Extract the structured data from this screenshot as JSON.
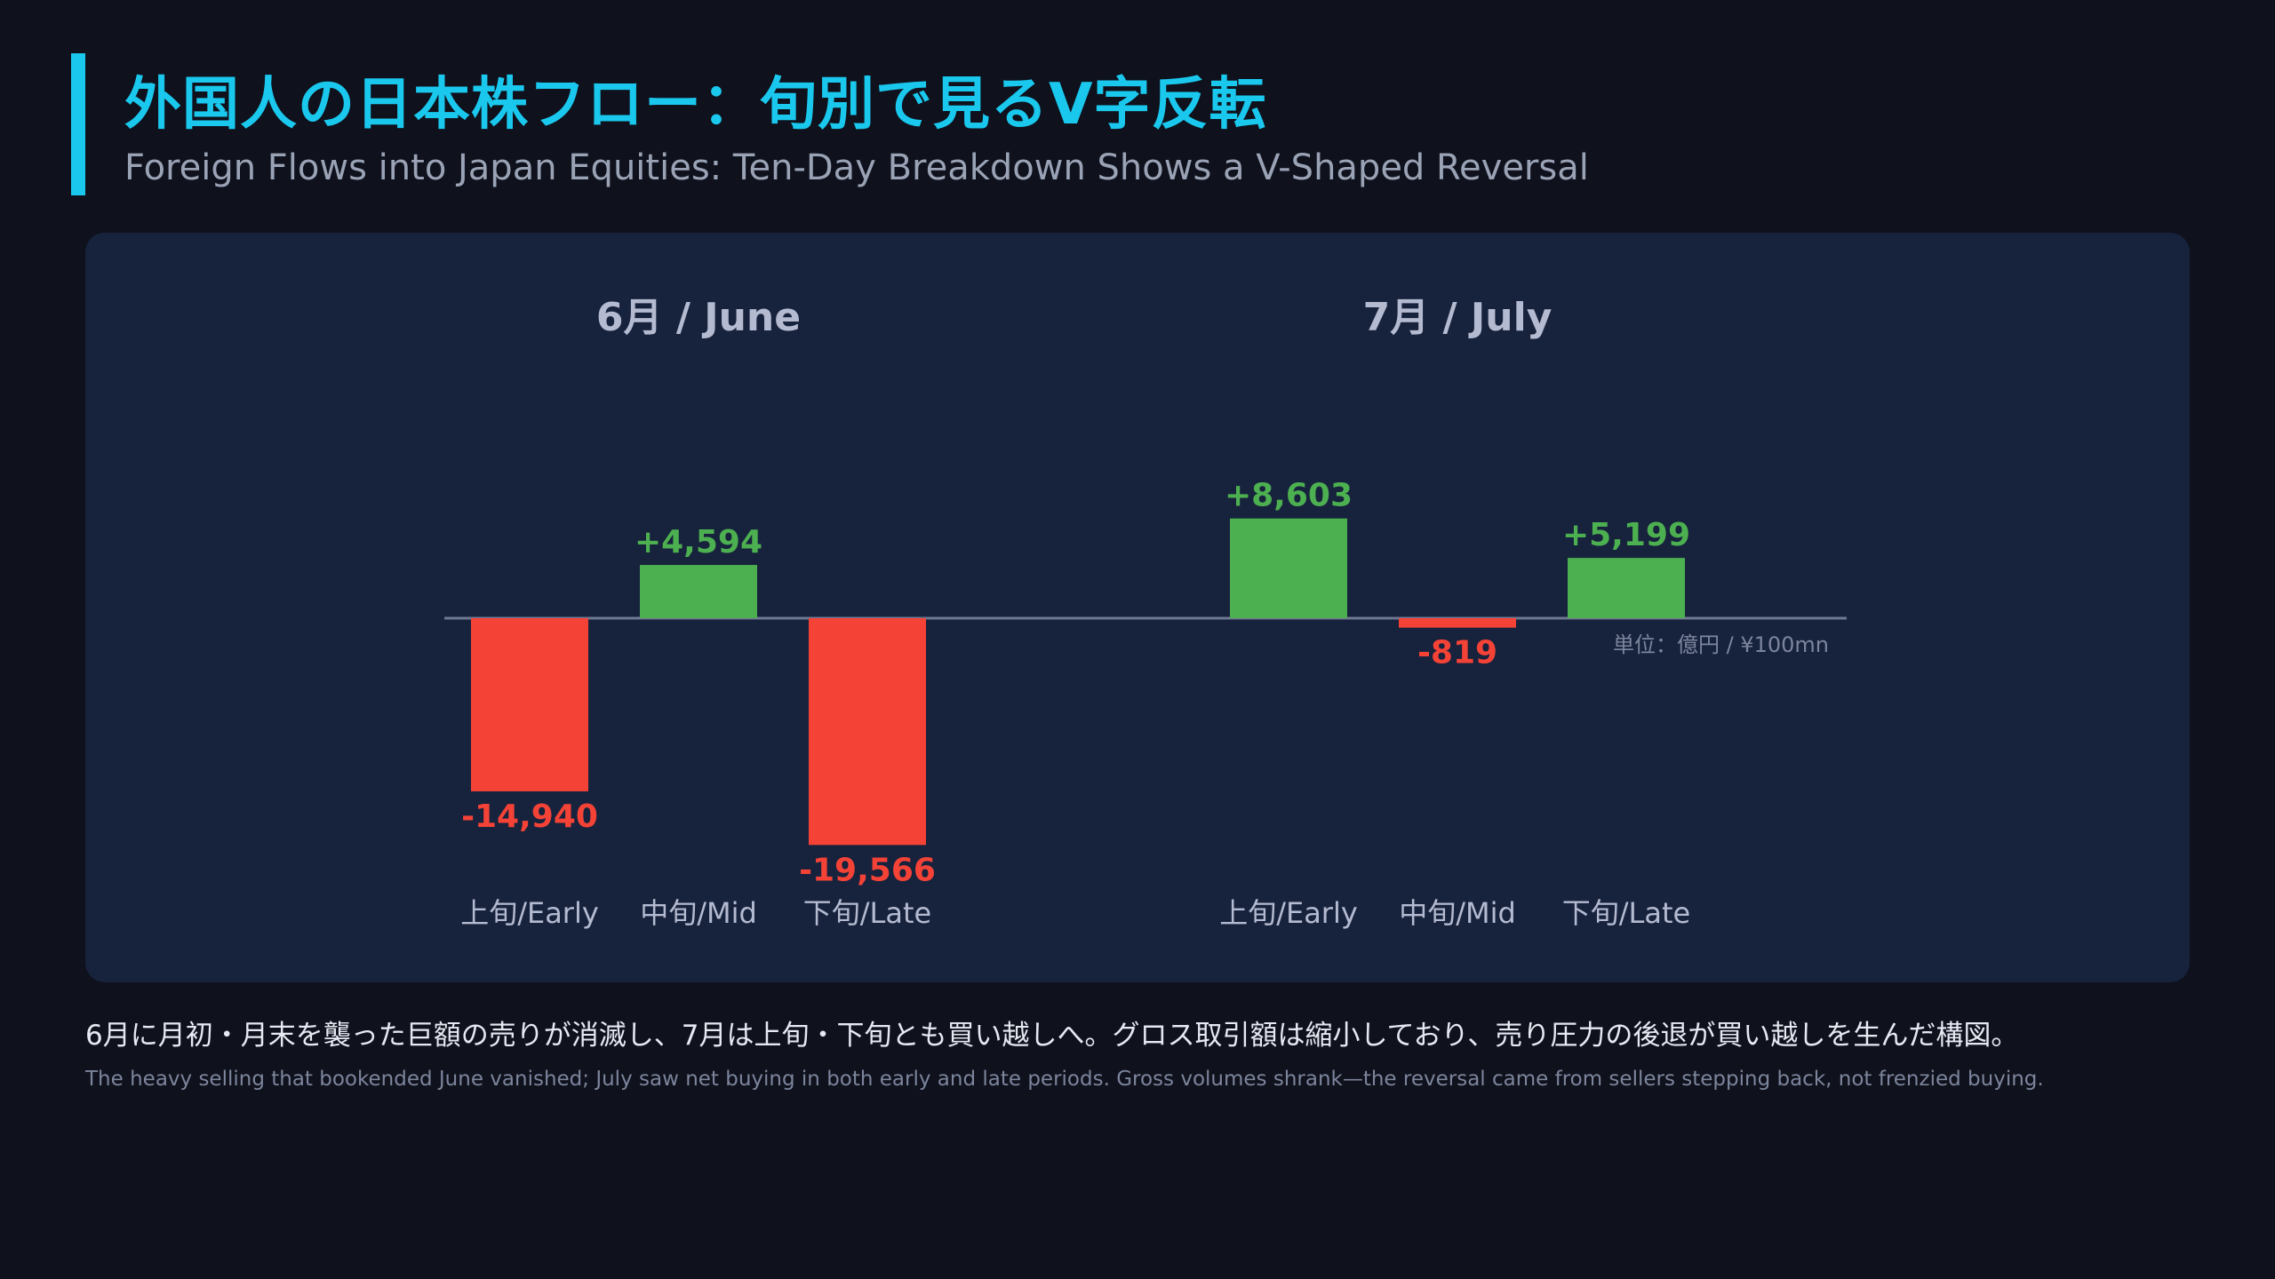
{
  "header": {
    "title_ja": "外国人の日本株フロー：旬別で見るV字反転",
    "title_en": "Foreign Flows into Japan Equities: Ten-Day Breakdown Shows a V-Shaped Reversal"
  },
  "colors": {
    "accent": "#1ac8ee",
    "positive": "#4caf50",
    "negative": "#f44336",
    "panel": "#17223d",
    "background": "#0f111c"
  },
  "chart_data": {
    "type": "bar",
    "unit_label": "単位：億円 / ¥100mn",
    "groups": [
      {
        "label": "6月 / June",
        "categories": [
          "上旬/Early",
          "中旬/Mid",
          "下旬/Late"
        ],
        "values": [
          -14940,
          4594,
          -19566
        ],
        "value_labels": [
          "-14,940",
          "+4,594",
          "-19,566"
        ]
      },
      {
        "label": "7月 / July",
        "categories": [
          "上旬/Early",
          "中旬/Mid",
          "下旬/Late"
        ],
        "values": [
          8603,
          -819,
          5199
        ],
        "value_labels": [
          "+8,603",
          "-819",
          "+5,199"
        ]
      }
    ],
    "baseline": 0,
    "grid": false
  },
  "notes": {
    "ja": "6月に月初・月末を襲った巨額の売りが消滅し、7月は上旬・下旬とも買い越しへ。グロス取引額は縮小しており、売り圧力の後退が買い越しを生んだ構図。",
    "en": "The heavy selling that bookended June vanished; July saw net buying in both early and late periods. Gross volumes shrank—the reversal came from sellers stepping back, not frenzied buying."
  }
}
